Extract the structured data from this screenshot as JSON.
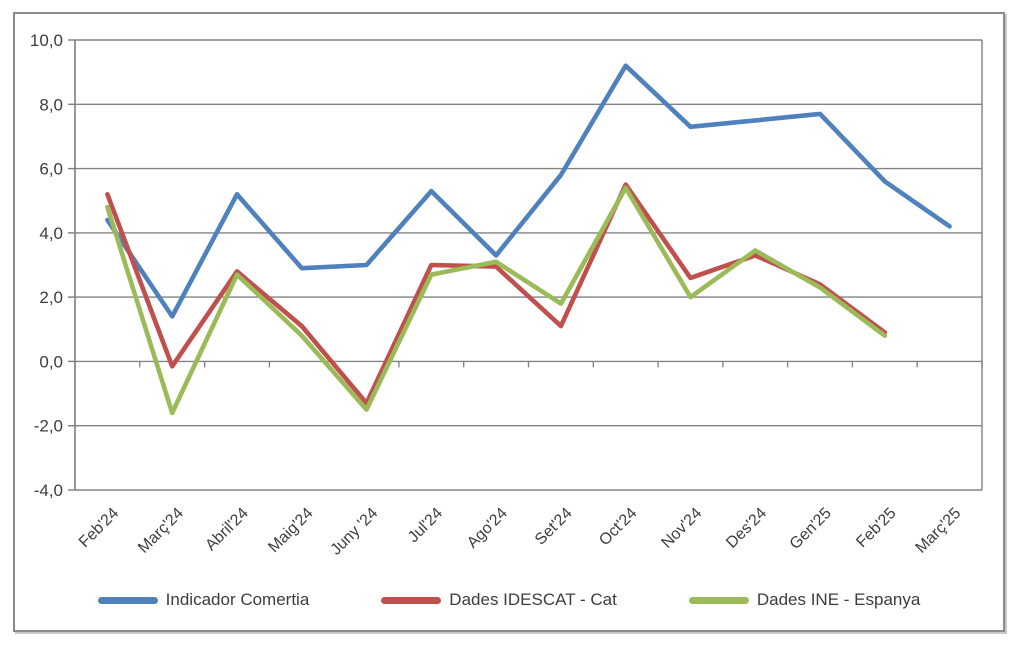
{
  "chart_data": {
    "type": "line",
    "title": "",
    "xlabel": "",
    "ylabel": "",
    "categories": [
      "Feb'24",
      "Març'24",
      "Abril'24",
      "Maig'24",
      "Juny '24",
      "Jul'24",
      "Ago'24",
      "Set'24",
      "Oct'24",
      "Nov'24",
      "Des'24",
      "Gen'25",
      "Feb'25",
      "Març'25"
    ],
    "series": [
      {
        "name": "Indicador Comertia",
        "color": "#4F81BD",
        "values": [
          4.4,
          1.4,
          5.2,
          2.9,
          3.0,
          5.3,
          3.3,
          5.8,
          9.2,
          7.3,
          7.5,
          7.7,
          5.6,
          4.2
        ]
      },
      {
        "name": "Dades IDESCAT - Cat",
        "color": "#C0504D",
        "values": [
          5.2,
          -0.15,
          2.8,
          1.1,
          -1.3,
          3.0,
          2.95,
          1.1,
          5.5,
          2.6,
          3.3,
          2.4,
          0.9,
          null
        ]
      },
      {
        "name": "Dades INE - Espanya",
        "color": "#9BBB59",
        "values": [
          4.8,
          -1.6,
          2.7,
          0.8,
          -1.5,
          2.7,
          3.1,
          1.8,
          5.4,
          2.0,
          3.45,
          2.3,
          0.8,
          null
        ]
      }
    ],
    "y_axis": {
      "min": -4,
      "max": 10,
      "step": 2,
      "tick_labels": [
        "10,0",
        "8,0",
        "6,0",
        "4,0",
        "2,0",
        "0,0",
        "-2,0",
        "-4,0"
      ]
    },
    "grid": "horizontal",
    "legend_position": "bottom",
    "axis_color": "#7f7f7f",
    "gridline_color": "#828282",
    "label_color": "#3d3d3d"
  }
}
